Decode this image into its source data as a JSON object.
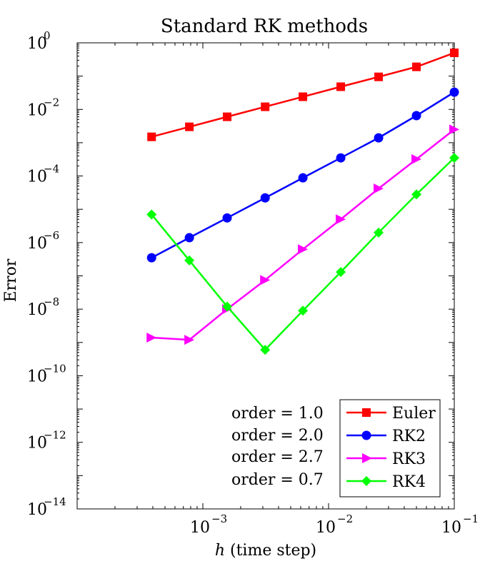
{
  "chart_data": {
    "type": "line",
    "title": "Standard RK methods",
    "xlabel": "h (time step)",
    "ylabel": "Error",
    "x_scale": "log",
    "y_scale": "log",
    "xlim": [
      0.0001,
      0.1
    ],
    "ylim": [
      1e-14,
      1
    ],
    "x_ticks": [
      {
        "value": 0.001,
        "base": "10",
        "exp": "−3"
      },
      {
        "value": 0.01,
        "base": "10",
        "exp": "−2"
      },
      {
        "value": 0.1,
        "base": "10",
        "exp": "−1"
      }
    ],
    "y_ticks": [
      {
        "value": 1,
        "base": "10",
        "exp": "0"
      },
      {
        "value": 0.01,
        "base": "10",
        "exp": "−2"
      },
      {
        "value": 0.0001,
        "base": "10",
        "exp": "−4"
      },
      {
        "value": 1e-06,
        "base": "10",
        "exp": "−6"
      },
      {
        "value": 1e-08,
        "base": "10",
        "exp": "−8"
      },
      {
        "value": 1e-10,
        "base": "10",
        "exp": "−10"
      },
      {
        "value": 1e-12,
        "base": "10",
        "exp": "−12"
      },
      {
        "value": 1e-14,
        "base": "10",
        "exp": "−14"
      }
    ],
    "x": [
      0.000391,
      0.000781,
      0.00156,
      0.00313,
      0.00625,
      0.0125,
      0.025,
      0.05,
      0.1
    ],
    "series": [
      {
        "name": "Euler",
        "color": "#ff0000",
        "marker": "square",
        "values": [
          0.0015,
          0.003,
          0.006,
          0.012,
          0.024,
          0.048,
          0.095,
          0.19,
          0.5
        ]
      },
      {
        "name": "RK2",
        "color": "#0000ff",
        "marker": "circle",
        "values": [
          3.5e-07,
          1.4e-06,
          5.5e-06,
          2.2e-05,
          8.8e-05,
          0.00035,
          0.0014,
          0.0065,
          0.033
        ]
      },
      {
        "name": "RK3",
        "color": "#ff00ff",
        "marker": "triangle-right",
        "values": [
          1.4e-09,
          1.2e-09,
          1e-08,
          7.5e-08,
          6.3e-07,
          5e-06,
          4.2e-05,
          0.00032,
          0.0025
        ]
      },
      {
        "name": "RK4",
        "color": "#00ff00",
        "marker": "diamond",
        "values": [
          7e-06,
          2.9e-07,
          1.2e-08,
          6e-10,
          9e-09,
          1.3e-07,
          2e-06,
          2.8e-05,
          0.00035
        ]
      }
    ],
    "annotations": [
      "order = 1.0",
      "order = 2.0",
      "order = 2.7",
      "order = 0.7"
    ],
    "legend_position": "bottom-right",
    "grid": false
  }
}
